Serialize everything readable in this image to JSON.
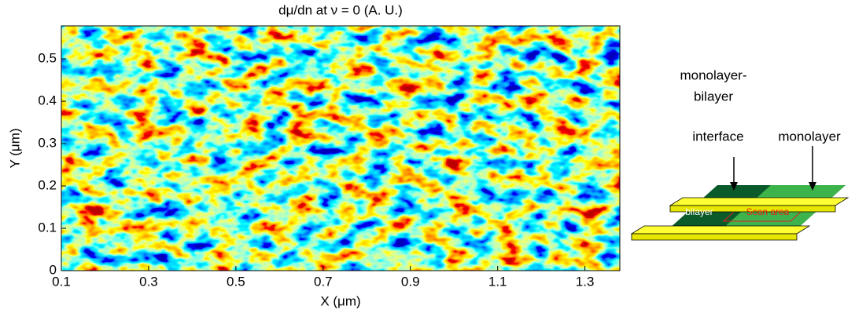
{
  "chart_data": {
    "type": "heatmap",
    "title": "dμ/dn at ν = 0 (A. U.)",
    "xlabel": "X (μm)",
    "ylabel": "Y (μm)",
    "xlim": [
      0.1,
      1.38
    ],
    "xticks": [
      0.1,
      0.3,
      0.5,
      0.7,
      0.9,
      1.1,
      1.3
    ],
    "ylim": [
      0,
      0.578
    ],
    "yticks": [
      0,
      0.1,
      0.2,
      0.3,
      0.4,
      0.5
    ]
  },
  "diagram": {
    "labels": {
      "interface_1": "monolayer-",
      "interface_2": "bilayer",
      "interface_3": "interface",
      "monolayer": "monolayer",
      "bilayer": "bilayer",
      "scan_area": "Scan area"
    }
  }
}
